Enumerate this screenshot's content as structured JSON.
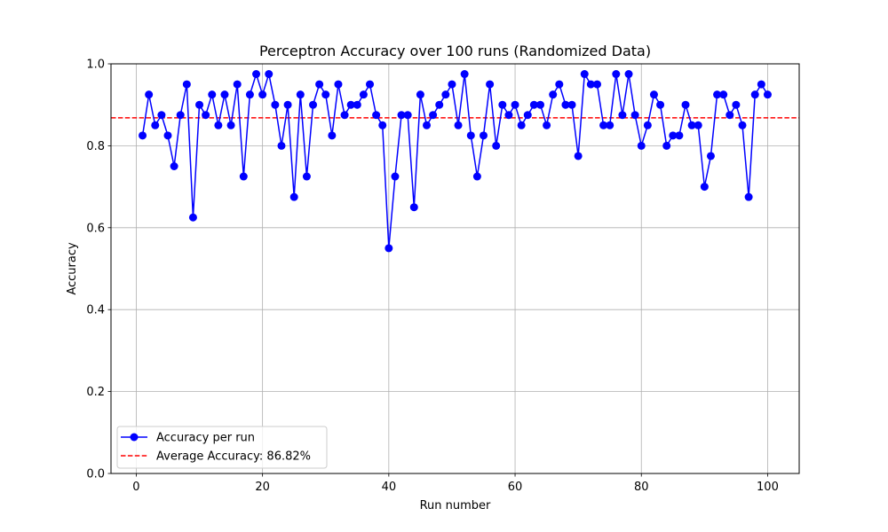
{
  "chart_data": {
    "type": "line",
    "title": "Perceptron Accuracy over 100 runs (Randomized Data)",
    "xlabel": "Run number",
    "ylabel": "Accuracy",
    "xlim": [
      -4,
      105
    ],
    "ylim": [
      0.0,
      1.0
    ],
    "xticks": [
      0,
      20,
      40,
      60,
      80,
      100
    ],
    "xtick_labels": [
      "0",
      "20",
      "40",
      "60",
      "80",
      "100"
    ],
    "yticks": [
      0.0,
      0.2,
      0.4,
      0.6,
      0.8,
      1.0
    ],
    "ytick_labels": [
      "0.0",
      "0.2",
      "0.4",
      "0.6",
      "0.8",
      "1.0"
    ],
    "grid": true,
    "legend_position": "lower-left",
    "series": [
      {
        "name": "Accuracy per run",
        "color": "#0000ff",
        "style": "solid-line-with-circle-markers",
        "x": [
          1,
          2,
          3,
          4,
          5,
          6,
          7,
          8,
          9,
          10,
          11,
          12,
          13,
          14,
          15,
          16,
          17,
          18,
          19,
          20,
          21,
          22,
          23,
          24,
          25,
          26,
          27,
          28,
          29,
          30,
          31,
          32,
          33,
          34,
          35,
          36,
          37,
          38,
          39,
          40,
          41,
          42,
          43,
          44,
          45,
          46,
          47,
          48,
          49,
          50,
          51,
          52,
          53,
          54,
          55,
          56,
          57,
          58,
          59,
          60,
          61,
          62,
          63,
          64,
          65,
          66,
          67,
          68,
          69,
          70,
          71,
          72,
          73,
          74,
          75,
          76,
          77,
          78,
          79,
          80,
          81,
          82,
          83,
          84,
          85,
          86,
          87,
          88,
          89,
          90,
          91,
          92,
          93,
          94,
          95,
          96,
          97,
          98,
          99,
          100
        ],
        "values": [
          0.825,
          0.925,
          0.85,
          0.875,
          0.825,
          0.75,
          0.875,
          0.95,
          0.625,
          0.9,
          0.875,
          0.925,
          0.85,
          0.925,
          0.85,
          0.95,
          0.725,
          0.925,
          0.975,
          0.925,
          0.975,
          0.9,
          0.8,
          0.9,
          0.675,
          0.925,
          0.725,
          0.9,
          0.95,
          0.925,
          0.825,
          0.95,
          0.875,
          0.9,
          0.9,
          0.925,
          0.95,
          0.875,
          0.85,
          0.55,
          0.725,
          0.875,
          0.875,
          0.65,
          0.925,
          0.85,
          0.875,
          0.9,
          0.925,
          0.95,
          0.85,
          0.975,
          0.825,
          0.725,
          0.825,
          0.95,
          0.8,
          0.9,
          0.875,
          0.9,
          0.85,
          0.875,
          0.9,
          0.9,
          0.85,
          0.925,
          0.95,
          0.9,
          0.9,
          0.775,
          0.975,
          0.95,
          0.95,
          0.85,
          0.85,
          0.975,
          0.875,
          0.975,
          0.875,
          0.8,
          0.85,
          0.925,
          0.9,
          0.8,
          0.825,
          0.825,
          0.9,
          0.85,
          0.85,
          0.7,
          0.775,
          0.925,
          0.925,
          0.875,
          0.9,
          0.85,
          0.675,
          0.925,
          0.95,
          0.925
        ]
      },
      {
        "name": "Average Accuracy: 86.82%",
        "color": "#ff0000",
        "style": "dashed-horizontal-line",
        "value": 0.8682
      }
    ]
  }
}
